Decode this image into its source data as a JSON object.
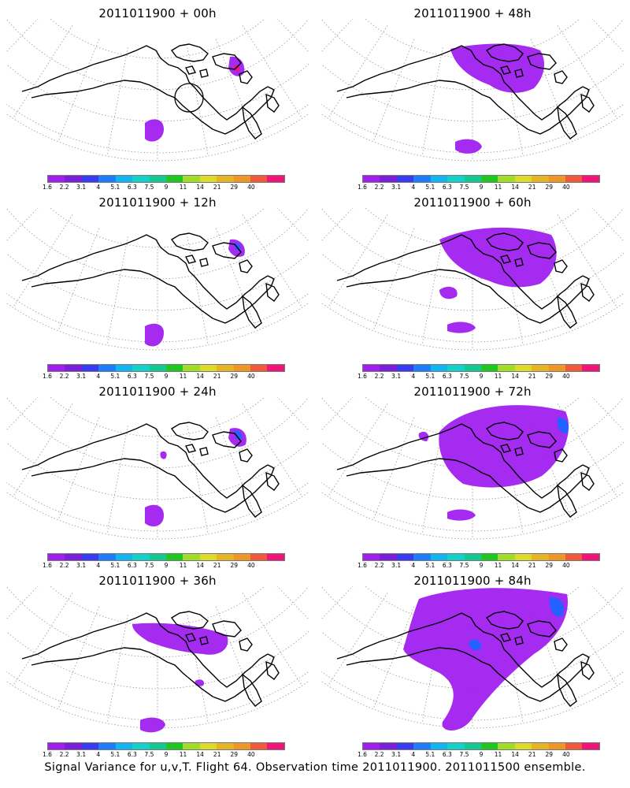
{
  "panels": [
    {
      "title": "2011011900 + 00h",
      "variance_level": "minimal",
      "hotspot_color": "#f0147a"
    },
    {
      "title": "2011011900 + 48h",
      "variance_level": "moderate"
    },
    {
      "title": "2011011900 + 12h",
      "variance_level": "minimal",
      "hotspot_color": "#1e64ff"
    },
    {
      "title": "2011011900 + 60h",
      "variance_level": "moderate"
    },
    {
      "title": "2011011900 + 24h",
      "variance_level": "low",
      "hotspot_color": "#1e64ff"
    },
    {
      "title": "2011011900 + 72h",
      "variance_level": "widespread"
    },
    {
      "title": "2011011900 + 36h",
      "variance_level": "low"
    },
    {
      "title": "2011011900 + 84h",
      "variance_level": "widespread"
    }
  ],
  "legend": {
    "labels": [
      "1.6",
      "2.2",
      "3.1",
      "4",
      "5.1",
      "6.3",
      "7.5",
      "9",
      "11",
      "14",
      "21",
      "29",
      "40"
    ],
    "colors": [
      "#a020f0",
      "#7b1fd6",
      "#3a3af0",
      "#1e7cff",
      "#14b4f0",
      "#14d2c8",
      "#14c896",
      "#1ec81e",
      "#a0dc28",
      "#dcdc28",
      "#e6b428",
      "#f09628",
      "#f05a3c",
      "#f0147a"
    ]
  },
  "footer": "Signal Variance for u,v,T. Flight 64. Observation time 2011011900. 2011011500 ensemble."
}
